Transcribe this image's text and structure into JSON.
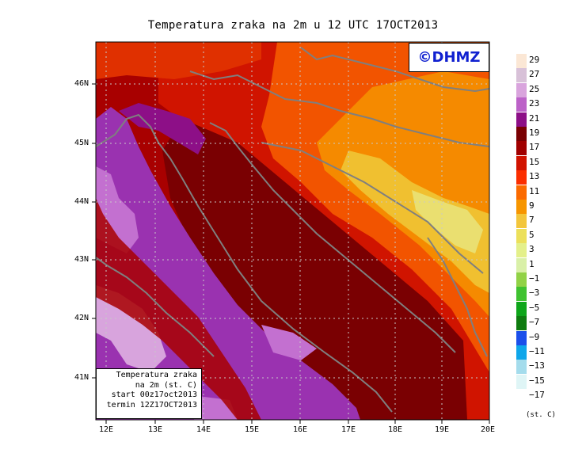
{
  "title": "Temperatura zraka na 2m u 12 UTC 17OCT2013",
  "logo": "©DHMZ",
  "info": {
    "line1": "Temperatura zraka",
    "line2": "na 2m (st. C)",
    "line3": "start 00z17oct2013",
    "line4": "termin 12Z17OCT2013"
  },
  "lat_labels": [
    "46N",
    "45N",
    "44N",
    "43N",
    "42N",
    "41N"
  ],
  "lon_labels": [
    "12E",
    "13E",
    "14E",
    "15E",
    "16E",
    "17E",
    "18E",
    "19E",
    "20E"
  ],
  "legend": {
    "unit": "(st. C)",
    "labels": [
      "29",
      "27",
      "25",
      "23",
      "21",
      "19",
      "17",
      "15",
      "13",
      "11",
      "9",
      "7",
      "5",
      "3",
      "1",
      "−1",
      "−3",
      "−5",
      "−7",
      "−9",
      "−11",
      "−13",
      "−15",
      "−17"
    ],
    "colors": [
      "#fbe7d5",
      "#d8c1d8",
      "#d9a4dd",
      "#bc62c8",
      "#8d0f87",
      "#7a0002",
      "#a10000",
      "#d11300",
      "#fb2e00",
      "#fb6a00",
      "#f79600",
      "#f3c63b",
      "#ece05a",
      "#e4f08a",
      "#d9f0a8",
      "#91d246",
      "#3fc230",
      "#0ea61a",
      "#0f7c10",
      "#1b4fea",
      "#0ea6ea",
      "#a4dcec",
      "#dff5f6",
      "#ffffff"
    ]
  },
  "colors": {
    "sea": "#9a32b0",
    "land": "#a80000",
    "coast": "#7f7f7f"
  }
}
